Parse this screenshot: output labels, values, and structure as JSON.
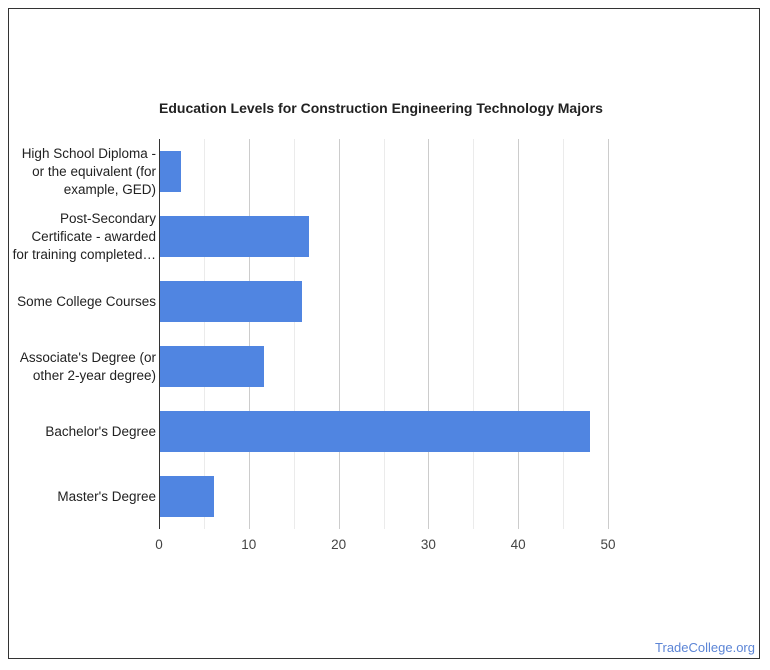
{
  "chart_data": {
    "type": "bar",
    "orientation": "horizontal",
    "title": "Education Levels for Construction Engineering Technology Majors",
    "categories": [
      "High School Diploma - or the equivalent (for example, GED)",
      "Post-Secondary Certificate - awarded for training completed…",
      "Some College Courses",
      "Associate's Degree (or other 2-year degree)",
      "Bachelor's Degree",
      "Master's Degree"
    ],
    "category_lines": [
      [
        "High School Diploma -",
        "or the equivalent (for",
        "example, GED)"
      ],
      [
        "Post-Secondary",
        "Certificate - awarded",
        "for training completed…"
      ],
      [
        "Some College Courses"
      ],
      [
        "Associate's Degree (or",
        "other 2-year degree)"
      ],
      [
        "Bachelor's Degree"
      ],
      [
        "Master's Degree"
      ]
    ],
    "values": [
      2.3,
      16.6,
      15.8,
      11.6,
      47.9,
      6.0
    ],
    "xlabel": "",
    "ylabel": "",
    "xlim": [
      0,
      50
    ],
    "xticks": [
      "0",
      "10",
      "20",
      "30",
      "40",
      "50"
    ],
    "grid": true,
    "legend": "none",
    "bar_color": "#5085e1"
  },
  "footer": {
    "source": "TradeCollege.org"
  }
}
